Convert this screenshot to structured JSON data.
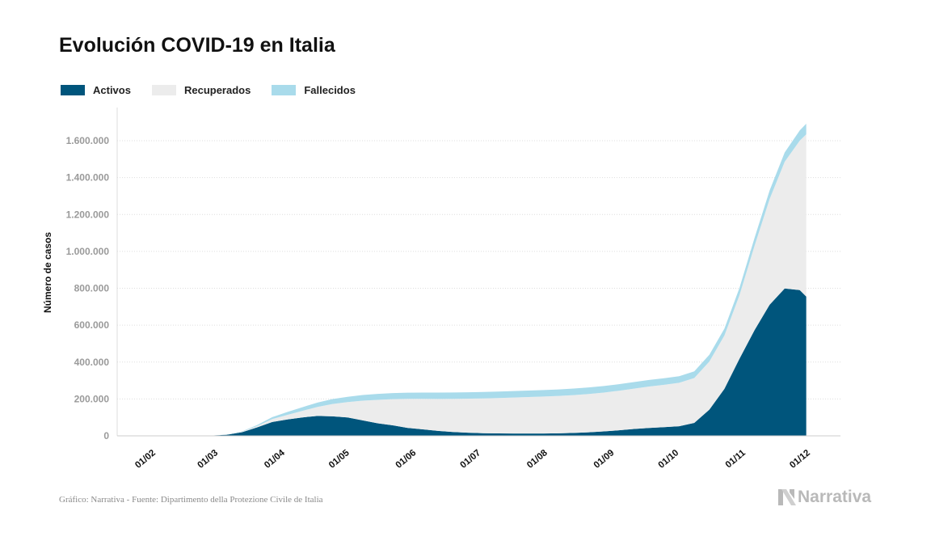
{
  "chart_data": {
    "type": "area",
    "stacked": true,
    "title": "Evolución COVID-19 en Italia",
    "ylabel": "Número de casos",
    "xlabel": "",
    "ylim": [
      0,
      1780000
    ],
    "y_ticks": [
      0,
      200000,
      400000,
      600000,
      800000,
      1000000,
      1200000,
      1400000,
      1600000
    ],
    "y_tick_labels": [
      "0",
      "200.000",
      "400.000",
      "600.000",
      "800.000",
      "1.000.000",
      "1.200.000",
      "1.400.000",
      "1.600.000"
    ],
    "x_ticks": [
      "01/02",
      "01/03",
      "01/04",
      "01/05",
      "01/06",
      "01/07",
      "01/08",
      "01/09",
      "01/10",
      "01/11",
      "01/12"
    ],
    "x_tick_dates": [
      "2020-02-01",
      "2020-03-01",
      "2020-04-01",
      "2020-05-01",
      "2020-06-01",
      "2020-07-01",
      "2020-08-01",
      "2020-09-01",
      "2020-10-01",
      "2020-11-01",
      "2020-12-01"
    ],
    "grid": "horizontal",
    "legend_position": "top-left",
    "x": [
      "2020-02-24",
      "2020-03-01",
      "2020-03-08",
      "2020-03-15",
      "2020-03-22",
      "2020-03-29",
      "2020-04-05",
      "2020-04-12",
      "2020-04-19",
      "2020-04-26",
      "2020-05-03",
      "2020-05-10",
      "2020-05-17",
      "2020-05-24",
      "2020-05-31",
      "2020-06-07",
      "2020-06-14",
      "2020-06-21",
      "2020-06-28",
      "2020-07-05",
      "2020-07-12",
      "2020-07-19",
      "2020-07-26",
      "2020-08-02",
      "2020-08-09",
      "2020-08-16",
      "2020-08-23",
      "2020-08-30",
      "2020-09-06",
      "2020-09-13",
      "2020-09-20",
      "2020-09-27",
      "2020-10-04",
      "2020-10-11",
      "2020-10-18",
      "2020-10-25",
      "2020-11-01",
      "2020-11-08",
      "2020-11-15",
      "2020-11-22",
      "2020-11-29",
      "2020-12-02"
    ],
    "series": [
      {
        "name": "Activos",
        "color": "#00557c",
        "values": [
          300,
          1500,
          6000,
          20000,
          46000,
          75000,
          89000,
          100000,
          108000,
          106000,
          100000,
          84000,
          68000,
          57000,
          43000,
          35000,
          27000,
          21000,
          17000,
          14000,
          13000,
          12800,
          12400,
          12500,
          13500,
          16000,
          19000,
          24000,
          30000,
          37000,
          43000,
          47000,
          52000,
          70000,
          142000,
          255000,
          418000,
          573000,
          711000,
          799000,
          790000,
          755000
        ]
      },
      {
        "name": "Recuperados",
        "color": "#ececec",
        "values": [
          0,
          40,
          600,
          2300,
          7400,
          15700,
          24400,
          35400,
          48900,
          66600,
          82900,
          106600,
          127300,
          141900,
          157500,
          165800,
          173100,
          179500,
          184600,
          188900,
          192000,
          195100,
          197800,
          200500,
          203000,
          205000,
          207900,
          210800,
          214600,
          219200,
          224400,
          229700,
          235600,
          243500,
          261000,
          289000,
          345000,
          458000,
          573000,
          687000,
          811000,
          880000
        ]
      },
      {
        "name": "Fallecidos",
        "color": "#a9dbeb",
        "values": [
          7,
          34,
          366,
          1809,
          5476,
          10779,
          15887,
          19899,
          23660,
          26644,
          28884,
          30560,
          32007,
          32785,
          33415,
          33899,
          34345,
          34657,
          34767,
          34869,
          34967,
          35058,
          35112,
          35166,
          35215,
          35396,
          35437,
          35483,
          35553,
          35624,
          35724,
          35851,
          35986,
          36111,
          36616,
          37479,
          39059,
          42330,
          46464,
          50453,
          54904,
          57045
        ]
      }
    ]
  },
  "footer": {
    "source": "Gráfico: Narrativa - Fuente: Dipartimento della Protezione Civile de Italia"
  },
  "logo": {
    "text": "Narrativa"
  }
}
